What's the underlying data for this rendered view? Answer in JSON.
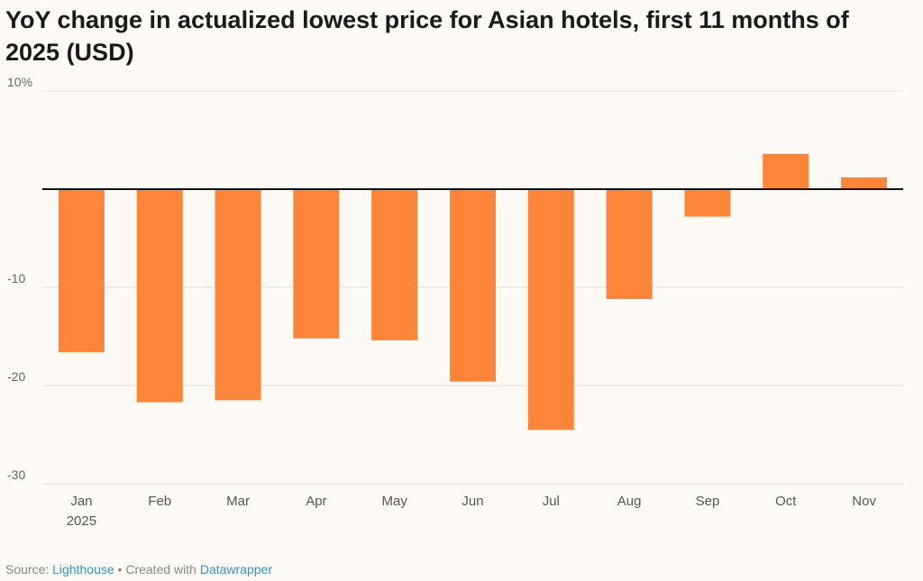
{
  "chart_data": {
    "type": "bar",
    "title": "YoY change in actualized lowest price for Asian hotels, first 11 months of 2025 (USD)",
    "categories": [
      "Jan",
      "Feb",
      "Mar",
      "Apr",
      "May",
      "Jun",
      "Jul",
      "Aug",
      "Sep",
      "Oct",
      "Nov"
    ],
    "category_sublabels": [
      "2025",
      "",
      "",
      "",
      "",
      "",
      "",
      "",
      "",
      "",
      ""
    ],
    "values": [
      -16.6,
      -21.7,
      -21.5,
      -15.2,
      -15.4,
      -19.6,
      -24.5,
      -11.2,
      -2.8,
      3.6,
      1.2
    ],
    "yticks": [
      10,
      0,
      -10,
      -20,
      -30
    ],
    "ytick_labels": [
      "10%",
      "",
      "-10",
      "-20",
      "-30"
    ],
    "ylim": [
      -30,
      10
    ],
    "xlabel": "",
    "ylabel": "",
    "grid": true,
    "bar_color": "#fd8539"
  },
  "footer": {
    "source_prefix": "Source: ",
    "source_link": "Lighthouse",
    "separator": " • Created with ",
    "tool_link": "Datawrapper"
  }
}
